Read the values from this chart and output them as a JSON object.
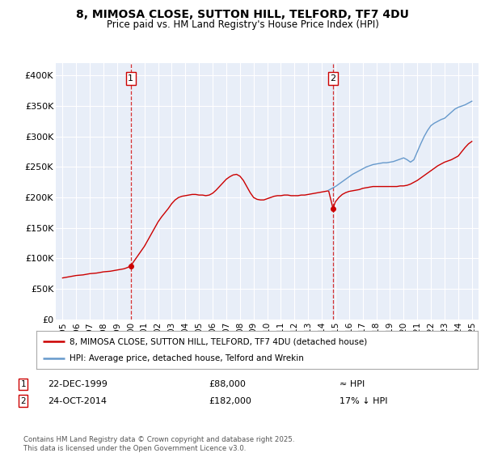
{
  "title1": "8, MIMOSA CLOSE, SUTTON HILL, TELFORD, TF7 4DU",
  "title2": "Price paid vs. HM Land Registry's House Price Index (HPI)",
  "bg_color": "#e8eef8",
  "ylim": [
    0,
    420000
  ],
  "yticks": [
    0,
    50000,
    100000,
    150000,
    200000,
    250000,
    300000,
    350000,
    400000
  ],
  "ytick_labels": [
    "£0",
    "£50K",
    "£100K",
    "£150K",
    "£200K",
    "£250K",
    "£300K",
    "£350K",
    "£400K"
  ],
  "xlim_start": 1994.5,
  "xlim_end": 2025.5,
  "xticks": [
    1995,
    1996,
    1997,
    1998,
    1999,
    2000,
    2001,
    2002,
    2003,
    2004,
    2005,
    2006,
    2007,
    2008,
    2009,
    2010,
    2011,
    2012,
    2013,
    2014,
    2015,
    2016,
    2017,
    2018,
    2019,
    2020,
    2021,
    2022,
    2023,
    2024,
    2025
  ],
  "marker1_x": 2000.0,
  "marker1_y": 88000,
  "marker1_date": "22-DEC-1999",
  "marker1_price": "£88,000",
  "marker1_hpi": "≈ HPI",
  "marker2_x": 2014.82,
  "marker2_y": 182000,
  "marker2_date": "24-OCT-2014",
  "marker2_price": "£182,000",
  "marker2_hpi": "17% ↓ HPI",
  "red_line_color": "#cc0000",
  "blue_line_color": "#6699cc",
  "legend_label_red": "8, MIMOSA CLOSE, SUTTON HILL, TELFORD, TF7 4DU (detached house)",
  "legend_label_blue": "HPI: Average price, detached house, Telford and Wrekin",
  "footer": "Contains HM Land Registry data © Crown copyright and database right 2025.\nThis data is licensed under the Open Government Licence v3.0.",
  "red_x": [
    1995.0,
    1995.25,
    1995.5,
    1995.75,
    1996.0,
    1996.25,
    1996.5,
    1996.75,
    1997.0,
    1997.25,
    1997.5,
    1997.75,
    1998.0,
    1998.25,
    1998.5,
    1998.75,
    1999.0,
    1999.25,
    1999.5,
    1999.75,
    2000.0,
    2000.25,
    2000.5,
    2000.75,
    2001.0,
    2001.25,
    2001.5,
    2001.75,
    2002.0,
    2002.25,
    2002.5,
    2002.75,
    2003.0,
    2003.25,
    2003.5,
    2003.75,
    2004.0,
    2004.25,
    2004.5,
    2004.75,
    2005.0,
    2005.25,
    2005.5,
    2005.75,
    2006.0,
    2006.25,
    2006.5,
    2006.75,
    2007.0,
    2007.25,
    2007.5,
    2007.75,
    2008.0,
    2008.25,
    2008.5,
    2008.75,
    2009.0,
    2009.25,
    2009.5,
    2009.75,
    2010.0,
    2010.25,
    2010.5,
    2010.75,
    2011.0,
    2011.25,
    2011.5,
    2011.75,
    2012.0,
    2012.25,
    2012.5,
    2012.75,
    2013.0,
    2013.25,
    2013.5,
    2013.75,
    2014.0,
    2014.25,
    2014.5,
    2014.82,
    2015.0,
    2015.25,
    2015.5,
    2015.75,
    2016.0,
    2016.25,
    2016.5,
    2016.75,
    2017.0,
    2017.25,
    2017.5,
    2017.75,
    2018.0,
    2018.25,
    2018.5,
    2018.75,
    2019.0,
    2019.25,
    2019.5,
    2019.75,
    2020.0,
    2020.25,
    2020.5,
    2020.75,
    2021.0,
    2021.25,
    2021.5,
    2021.75,
    2022.0,
    2022.25,
    2022.5,
    2022.75,
    2023.0,
    2023.25,
    2023.5,
    2023.75,
    2024.0,
    2024.25,
    2024.5,
    2024.75,
    2025.0
  ],
  "red_y": [
    68000,
    69000,
    70000,
    71000,
    72000,
    72500,
    73000,
    74000,
    75000,
    75500,
    76000,
    77000,
    78000,
    78500,
    79000,
    80000,
    81000,
    82000,
    83000,
    85000,
    88000,
    96000,
    104000,
    112000,
    120000,
    130000,
    140000,
    150000,
    160000,
    168000,
    175000,
    182000,
    190000,
    196000,
    200000,
    202000,
    203000,
    204000,
    205000,
    205000,
    204000,
    204000,
    203000,
    204000,
    207000,
    212000,
    218000,
    224000,
    230000,
    234000,
    237000,
    238000,
    235000,
    228000,
    218000,
    208000,
    200000,
    197000,
    196000,
    196000,
    198000,
    200000,
    202000,
    203000,
    203000,
    204000,
    204000,
    203000,
    203000,
    203000,
    204000,
    204000,
    205000,
    206000,
    207000,
    208000,
    209000,
    210000,
    211000,
    182000,
    193000,
    200000,
    205000,
    208000,
    210000,
    211000,
    212000,
    213000,
    215000,
    216000,
    217000,
    218000,
    218000,
    218000,
    218000,
    218000,
    218000,
    218000,
    218000,
    219000,
    219000,
    220000,
    222000,
    225000,
    228000,
    232000,
    236000,
    240000,
    244000,
    248000,
    252000,
    255000,
    258000,
    260000,
    262000,
    265000,
    268000,
    275000,
    282000,
    288000,
    292000
  ],
  "blue_x": [
    2014.5,
    2014.75,
    2015.0,
    2015.25,
    2015.5,
    2015.75,
    2016.0,
    2016.25,
    2016.5,
    2016.75,
    2017.0,
    2017.25,
    2017.5,
    2017.75,
    2018.0,
    2018.25,
    2018.5,
    2018.75,
    2019.0,
    2019.25,
    2019.5,
    2019.75,
    2020.0,
    2020.25,
    2020.5,
    2020.75,
    2021.0,
    2021.25,
    2021.5,
    2021.75,
    2022.0,
    2022.25,
    2022.5,
    2022.75,
    2023.0,
    2023.25,
    2023.5,
    2023.75,
    2024.0,
    2024.25,
    2024.5,
    2024.75,
    2025.0
  ],
  "blue_y": [
    212000,
    215000,
    218000,
    222000,
    226000,
    230000,
    234000,
    238000,
    241000,
    244000,
    247000,
    250000,
    252000,
    254000,
    255000,
    256000,
    257000,
    257000,
    258000,
    259000,
    261000,
    263000,
    265000,
    262000,
    258000,
    262000,
    275000,
    288000,
    300000,
    310000,
    318000,
    322000,
    325000,
    328000,
    330000,
    335000,
    340000,
    345000,
    348000,
    350000,
    352000,
    355000,
    358000
  ]
}
